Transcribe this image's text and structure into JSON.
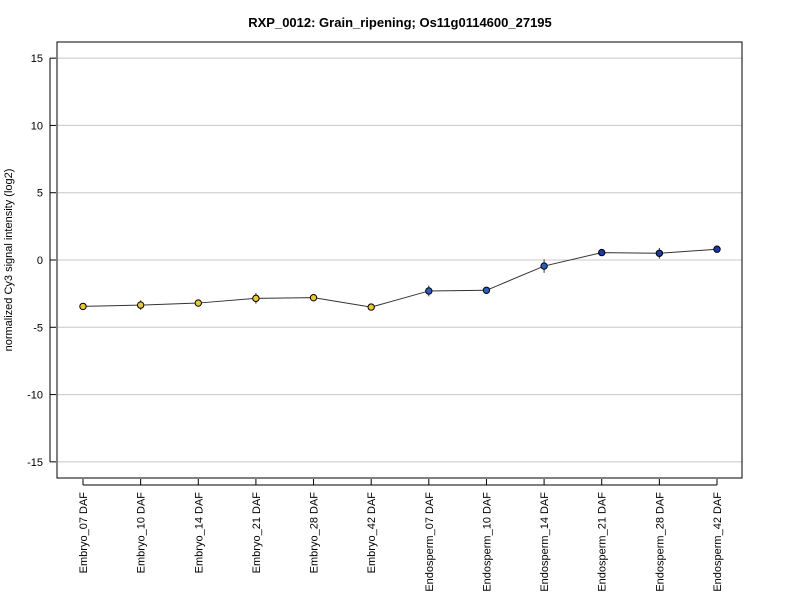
{
  "chart_data": {
    "type": "line",
    "title": "RXP_0012: Grain_ripening; Os11g0114600_27195",
    "ylabel": "normalized Cy3 signal intensity (log2)",
    "xlabel": "",
    "ylim": [
      -16.2,
      16.2
    ],
    "yticks": [
      -15,
      -10,
      -5,
      0,
      5,
      10,
      15
    ],
    "grid": "horizontal",
    "categories": [
      "Embryo_07 DAF",
      "Embryo_10 DAF",
      "Embryo_14 DAF",
      "Embryo_21 DAF",
      "Embryo_28 DAF",
      "Embryo_42 DAF",
      "Endosperm_07 DAF",
      "Endosperm_10 DAF",
      "Endosperm_14 DAF",
      "Endosperm_21 DAF",
      "Endosperm_28 DAF",
      "Endosperm_42 DAF"
    ],
    "values": [
      -3.45,
      -3.35,
      -3.2,
      -2.85,
      -2.8,
      -3.5,
      -2.3,
      -2.25,
      -0.45,
      0.55,
      0.5,
      0.8
    ],
    "error": [
      0.15,
      0.35,
      0.15,
      0.4,
      0.2,
      0.15,
      0.4,
      0.15,
      0.5,
      0.15,
      0.4,
      0.15
    ],
    "point_colors": [
      "#e8c832",
      "#e8c832",
      "#e8c832",
      "#e8c832",
      "#e8c832",
      "#e8c832",
      "#2a5fc0",
      "#2a5fc0",
      "#2a5fc0",
      "#1b3aa8",
      "#1b3aa8",
      "#1b3aa8"
    ],
    "line_color": "#333333"
  }
}
